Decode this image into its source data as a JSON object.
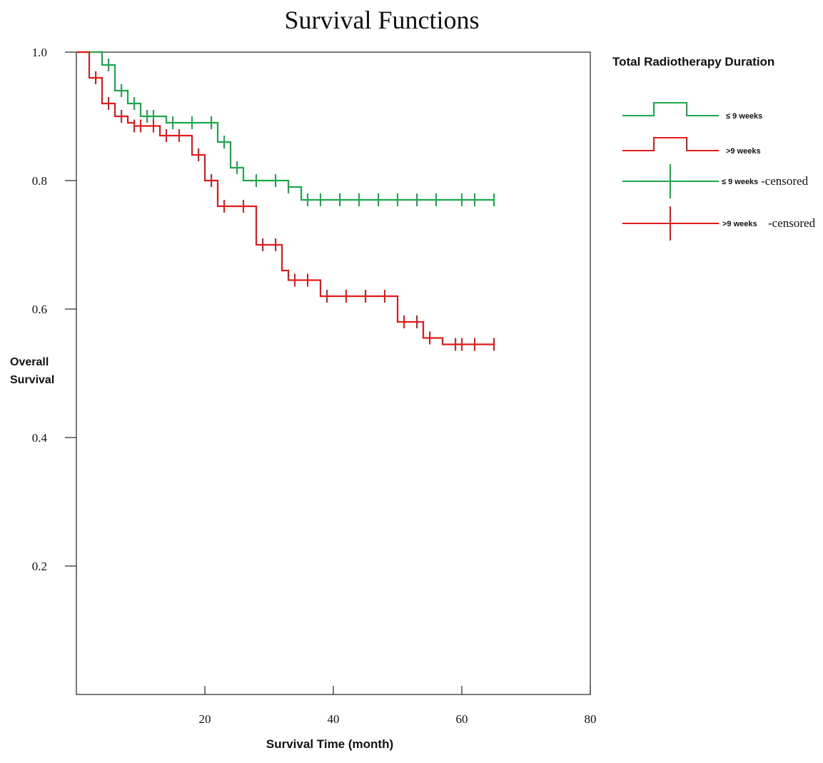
{
  "chart_data": {
    "type": "line",
    "title": "Survival Functions",
    "xlabel": "Survival Time (month)",
    "ylabel_lines": [
      "Overall",
      "Survival"
    ],
    "xlim": [
      0,
      80
    ],
    "ylim": [
      0,
      1
    ],
    "x_ticks": [
      20,
      40,
      60,
      80
    ],
    "x_tick_labels": [
      "20",
      "40",
      "60",
      "80"
    ],
    "y_ticks": [
      0.2,
      0.4,
      0.6,
      0.8,
      1.0
    ],
    "y_tick_labels": [
      "0.2",
      "0.4",
      "0.6",
      "0.8",
      "1.0"
    ],
    "grid": false,
    "legend_position": "right",
    "legend": {
      "title": "Total Radiotherapy Duration",
      "entries": [
        {
          "label": "≤ 9 weeks",
          "suffix": "",
          "color": "#1aa84a",
          "kind": "step"
        },
        {
          "label": ">9 weeks",
          "suffix": "",
          "color": "#e31a1c",
          "kind": "step"
        },
        {
          "label": "≤ 9 weeks",
          "suffix": "-censored",
          "color": "#1aa84a",
          "kind": "censor"
        },
        {
          "label": ">9 weeks",
          "suffix": "-censored",
          "color": "#e31a1c",
          "kind": "censor"
        }
      ]
    },
    "series": [
      {
        "name": "≤ 9 weeks",
        "color": "#1aa84a",
        "steps": [
          [
            0,
            1.0
          ],
          [
            4,
            0.98
          ],
          [
            6,
            0.94
          ],
          [
            8,
            0.92
          ],
          [
            10,
            0.9
          ],
          [
            14,
            0.89
          ],
          [
            22,
            0.86
          ],
          [
            24,
            0.82
          ],
          [
            26,
            0.8
          ],
          [
            33,
            0.79
          ],
          [
            35,
            0.77
          ]
        ],
        "end_x": 65,
        "censored": [
          [
            5,
            0.98
          ],
          [
            7,
            0.94
          ],
          [
            9,
            0.92
          ],
          [
            11,
            0.9
          ],
          [
            12,
            0.9
          ],
          [
            15,
            0.89
          ],
          [
            18,
            0.89
          ],
          [
            21,
            0.89
          ],
          [
            23,
            0.86
          ],
          [
            25,
            0.82
          ],
          [
            28,
            0.8
          ],
          [
            31,
            0.8
          ],
          [
            33,
            0.79
          ],
          [
            36,
            0.77
          ],
          [
            38,
            0.77
          ],
          [
            41,
            0.77
          ],
          [
            44,
            0.77
          ],
          [
            47,
            0.77
          ],
          [
            50,
            0.77
          ],
          [
            53,
            0.77
          ],
          [
            56,
            0.77
          ],
          [
            60,
            0.77
          ],
          [
            62,
            0.77
          ],
          [
            65,
            0.77
          ]
        ]
      },
      {
        "name": ">9 weeks",
        "color": "#e31a1c",
        "steps": [
          [
            0,
            1.0
          ],
          [
            2,
            0.96
          ],
          [
            4,
            0.92
          ],
          [
            6,
            0.9
          ],
          [
            8,
            0.89
          ],
          [
            9,
            0.885
          ],
          [
            13,
            0.87
          ],
          [
            18,
            0.84
          ],
          [
            20,
            0.8
          ],
          [
            22,
            0.76
          ],
          [
            28,
            0.7
          ],
          [
            32,
            0.66
          ],
          [
            33,
            0.645
          ],
          [
            38,
            0.62
          ],
          [
            50,
            0.58
          ],
          [
            54,
            0.555
          ],
          [
            57,
            0.545
          ]
        ],
        "end_x": 65,
        "censored": [
          [
            3,
            0.96
          ],
          [
            5,
            0.92
          ],
          [
            7,
            0.9
          ],
          [
            9,
            0.885
          ],
          [
            10,
            0.885
          ],
          [
            12,
            0.885
          ],
          [
            14,
            0.87
          ],
          [
            16,
            0.87
          ],
          [
            19,
            0.84
          ],
          [
            21,
            0.8
          ],
          [
            23,
            0.76
          ],
          [
            26,
            0.76
          ],
          [
            29,
            0.7
          ],
          [
            31,
            0.7
          ],
          [
            34,
            0.645
          ],
          [
            36,
            0.645
          ],
          [
            39,
            0.62
          ],
          [
            42,
            0.62
          ],
          [
            45,
            0.62
          ],
          [
            48,
            0.62
          ],
          [
            51,
            0.58
          ],
          [
            53,
            0.58
          ],
          [
            55,
            0.555
          ],
          [
            59,
            0.545
          ],
          [
            60,
            0.545
          ],
          [
            62,
            0.545
          ],
          [
            65,
            0.545
          ]
        ]
      }
    ]
  }
}
